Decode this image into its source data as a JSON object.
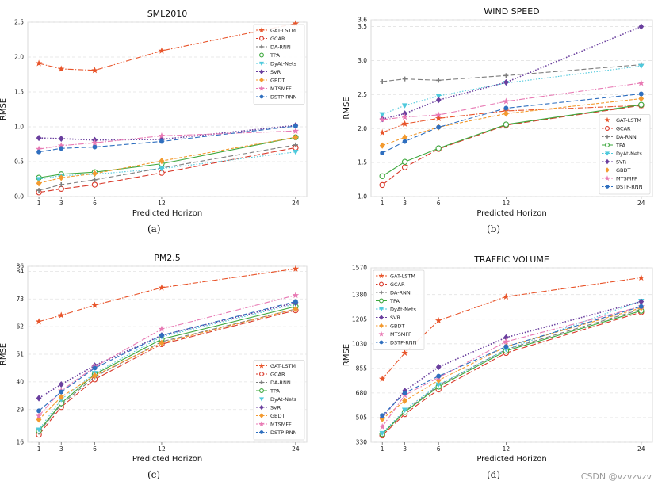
{
  "watermark": "CSDN @vzvzvzv",
  "series_styles": [
    {
      "name": "GAT-LSTM",
      "color": "#e8542a",
      "dash": "7 2 1.5 2",
      "marker": "star"
    },
    {
      "name": "GCAR",
      "color": "#d93a2b",
      "dash": "8 3",
      "marker": "ocircle"
    },
    {
      "name": "DA-RNN",
      "color": "#7d7d7d",
      "dash": "6 3",
      "marker": "plus"
    },
    {
      "name": "TPA",
      "color": "#3ea83e",
      "dash": "",
      "marker": "ocircle"
    },
    {
      "name": "DyAt-Nets",
      "color": "#4fc9dc",
      "dash": "1.5 2",
      "marker": "tri"
    },
    {
      "name": "SVR",
      "color": "#6a3f9e",
      "dash": "1.5 2",
      "marker": "diamond"
    },
    {
      "name": "GBDT",
      "color": "#f39a2f",
      "dash": "4 2",
      "marker": "diamond"
    },
    {
      "name": "MTSMFF",
      "color": "#e87ab4",
      "dash": "7 2 1.5 2",
      "marker": "star"
    },
    {
      "name": "DSTP-RNN",
      "color": "#2f6fbf",
      "dash": "6 3",
      "marker": "circle"
    }
  ],
  "chart_data": [
    {
      "type": "line",
      "caption": "(a)",
      "title": "SML2010",
      "xlabel": "Predicted Horizon",
      "ylabel": "RMSE",
      "x": [
        1,
        3,
        6,
        12,
        24
      ],
      "ylim": [
        0,
        2.5
      ],
      "yticks": [
        0.0,
        0.5,
        1.0,
        1.5,
        2.0,
        2.5
      ],
      "ytick_labels": [
        "0.0",
        "0.5",
        "1.0",
        "1.5",
        "2.0",
        "2.5"
      ],
      "legend_loc": "top-right",
      "series": [
        {
          "name": "GAT-LSTM",
          "values": [
            1.91,
            1.83,
            1.81,
            2.09,
            2.48
          ]
        },
        {
          "name": "GCAR",
          "values": [
            0.06,
            0.11,
            0.17,
            0.34,
            0.7
          ]
        },
        {
          "name": "DA-RNN",
          "values": [
            0.09,
            0.17,
            0.24,
            0.41,
            0.74
          ]
        },
        {
          "name": "TPA",
          "values": [
            0.27,
            0.32,
            0.35,
            0.47,
            0.85
          ]
        },
        {
          "name": "DyAt-Nets",
          "values": [
            0.25,
            0.3,
            0.32,
            0.4,
            0.64
          ]
        },
        {
          "name": "SVR",
          "values": [
            0.84,
            0.83,
            0.81,
            0.82,
            1.02
          ]
        },
        {
          "name": "GBDT",
          "values": [
            0.19,
            0.27,
            0.33,
            0.51,
            0.85
          ]
        },
        {
          "name": "MTSMFF",
          "values": [
            0.68,
            0.73,
            0.77,
            0.87,
            0.94
          ]
        },
        {
          "name": "DSTP-RNN",
          "values": [
            0.64,
            0.69,
            0.71,
            0.79,
            1.01
          ]
        }
      ]
    },
    {
      "type": "line",
      "caption": "(b)",
      "title": "WIND SPEED",
      "xlabel": "Predicted Horizon",
      "ylabel": "RMSE",
      "x": [
        1,
        3,
        6,
        12,
        24
      ],
      "ylim": [
        1.0,
        3.6
      ],
      "yticks": [
        1.0,
        1.5,
        2.0,
        2.5,
        3.0,
        3.5,
        3.6
      ],
      "ytick_labels": [
        "1.0",
        "1.5",
        "2.0",
        "2.5",
        "3.0",
        "3.5",
        "3.6"
      ],
      "legend_loc": "bottom-right",
      "series": [
        {
          "name": "GAT-LSTM",
          "values": [
            1.94,
            2.07,
            2.15,
            2.26,
            2.34
          ]
        },
        {
          "name": "GCAR",
          "values": [
            1.17,
            1.43,
            1.7,
            2.05,
            2.34
          ]
        },
        {
          "name": "DA-RNN",
          "values": [
            2.69,
            2.73,
            2.71,
            2.78,
            2.94
          ]
        },
        {
          "name": "TPA",
          "values": [
            1.3,
            1.51,
            1.71,
            2.06,
            2.35
          ]
        },
        {
          "name": "DyAt-Nets",
          "values": [
            2.21,
            2.34,
            2.48,
            2.67,
            2.92
          ]
        },
        {
          "name": "SVR",
          "values": [
            2.14,
            2.22,
            2.42,
            2.68,
            3.5
          ]
        },
        {
          "name": "GBDT",
          "values": [
            1.75,
            1.87,
            2.02,
            2.22,
            2.44
          ]
        },
        {
          "name": "MTSMFF",
          "values": [
            2.13,
            2.17,
            2.2,
            2.4,
            2.67
          ]
        },
        {
          "name": "DSTP-RNN",
          "values": [
            1.64,
            1.81,
            2.02,
            2.3,
            2.51
          ]
        }
      ]
    },
    {
      "type": "line",
      "caption": "(c)",
      "title": "PM2.5",
      "xlabel": "Predicted Horizon",
      "ylabel": "RMSE",
      "x": [
        1,
        3,
        6,
        12,
        24
      ],
      "ylim": [
        16,
        86
      ],
      "yticks": [
        16,
        29,
        40,
        51,
        62,
        73,
        84,
        86
      ],
      "ytick_labels": [
        "16",
        "29",
        "40",
        "51",
        "62",
        "73",
        "84",
        "86"
      ],
      "legend_loc": "bottom-right",
      "series": [
        {
          "name": "GAT-LSTM",
          "values": [
            64,
            66.5,
            70.5,
            77.5,
            85
          ]
        },
        {
          "name": "GCAR",
          "values": [
            19,
            30,
            41,
            55,
            68.5
          ]
        },
        {
          "name": "DA-RNN",
          "values": [
            20,
            31,
            42,
            56,
            69
          ]
        },
        {
          "name": "TPA",
          "values": [
            20.5,
            31.5,
            43,
            57,
            70
          ]
        },
        {
          "name": "DyAt-Nets",
          "values": [
            21,
            33,
            43.5,
            58,
            71
          ]
        },
        {
          "name": "SVR",
          "values": [
            33.5,
            39,
            46.5,
            58.5,
            71.5
          ]
        },
        {
          "name": "GBDT",
          "values": [
            25,
            34,
            42.5,
            55.5,
            69
          ]
        },
        {
          "name": "MTSMFF",
          "values": [
            26.5,
            36.5,
            46,
            61,
            74.5
          ]
        },
        {
          "name": "DSTP-RNN",
          "values": [
            28.5,
            36,
            45.5,
            58.5,
            72
          ]
        }
      ]
    },
    {
      "type": "line",
      "caption": "(d)",
      "title": "TRAFFIC VOLUME",
      "xlabel": "Predicted Horizon",
      "ylabel": "RMSE",
      "x": [
        1,
        3,
        6,
        12,
        24
      ],
      "ylim": [
        330,
        1570
      ],
      "yticks": [
        330,
        505,
        680,
        855,
        1030,
        1205,
        1380,
        1570
      ],
      "ytick_labels": [
        "330",
        "505",
        "680",
        "855",
        "1030",
        "1205",
        "1380",
        "1570"
      ],
      "legend_loc": "top-left",
      "series": [
        {
          "name": "GAT-LSTM",
          "values": [
            780,
            965,
            1195,
            1365,
            1500
          ]
        },
        {
          "name": "GCAR",
          "values": [
            378,
            530,
            705,
            965,
            1255
          ]
        },
        {
          "name": "DA-RNN",
          "values": [
            390,
            550,
            735,
            990,
            1275
          ]
        },
        {
          "name": "TPA",
          "values": [
            388,
            545,
            725,
            980,
            1265
          ]
        },
        {
          "name": "DyAt-Nets",
          "values": [
            395,
            560,
            740,
            990,
            1335
          ]
        },
        {
          "name": "SVR",
          "values": [
            505,
            695,
            865,
            1075,
            1330
          ]
        },
        {
          "name": "GBDT",
          "values": [
            495,
            625,
            770,
            1010,
            1285
          ]
        },
        {
          "name": "MTSMFF",
          "values": [
            440,
            665,
            790,
            1045,
            1295
          ]
        },
        {
          "name": "DSTP-RNN",
          "values": [
            520,
            680,
            800,
            1010,
            1295
          ]
        }
      ]
    }
  ]
}
